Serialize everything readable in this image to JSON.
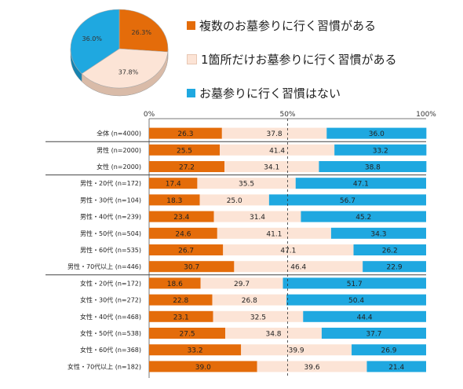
{
  "legend": [
    {
      "label": "複数のお墓参りに行く習慣がある",
      "color": "#E46C0A"
    },
    {
      "label": "1箇所だけお墓参りに行く習慣がある",
      "color": "#FCE4D6"
    },
    {
      "label": "お墓参りに行く習慣はない",
      "color": "#1FA8E0"
    }
  ],
  "chart_data": [
    {
      "type": "pie",
      "labels": [
        "複数のお墓参りに行く習慣がある",
        "1箇所だけお墓参りに行く習慣がある",
        "お墓参りに行く習慣はない"
      ],
      "values": [
        26.3,
        37.8,
        36.0
      ],
      "value_labels": [
        "26.3%",
        "37.8%",
        "36.0%"
      ],
      "colors": [
        "#E46C0A",
        "#FCE4D6",
        "#1FA8E0"
      ]
    },
    {
      "type": "bar",
      "orientation": "horizontal",
      "stacked": true,
      "xlim": [
        0,
        100
      ],
      "tick_labels": [
        "0%",
        "50%",
        "100%"
      ],
      "categories": [
        "全体 (n=4000)",
        "男性 (n=2000)",
        "女性 (n=2000)",
        "男性・20代 (n=172)",
        "男性・30代 (n=104)",
        "男性・40代 (n=239)",
        "男性・50代 (n=504)",
        "男性・60代 (n=535)",
        "男性・70代以上 (n=446)",
        "女性・20代 (n=172)",
        "女性・30代 (n=272)",
        "女性・40代 (n=468)",
        "女性・50代 (n=538)",
        "女性・60代 (n=368)",
        "女性・70代以上 (n=182)"
      ],
      "series": [
        {
          "name": "複数のお墓参りに行く習慣がある",
          "color": "#E46C0A",
          "values": [
            26.3,
            25.5,
            27.2,
            17.4,
            18.3,
            23.4,
            24.6,
            26.7,
            30.7,
            18.6,
            22.8,
            23.1,
            27.5,
            33.2,
            39.0
          ]
        },
        {
          "name": "1箇所だけお墓参りに行く習慣がある",
          "color": "#FCE4D6",
          "values": [
            37.8,
            41.4,
            34.1,
            35.5,
            25.0,
            31.4,
            41.1,
            47.1,
            46.4,
            29.7,
            26.8,
            32.5,
            34.8,
            39.9,
            39.6
          ]
        },
        {
          "name": "お墓参りに行く習慣はない",
          "color": "#1FA8E0",
          "values": [
            36.0,
            33.2,
            38.8,
            47.1,
            56.7,
            45.2,
            34.3,
            26.2,
            22.9,
            51.7,
            50.4,
            44.4,
            37.7,
            26.9,
            21.4
          ]
        }
      ],
      "value_labels": [
        [
          "26.3",
          "37.8",
          "36.0"
        ],
        [
          "25.5",
          "41.4",
          "33.2"
        ],
        [
          "27.2",
          "34.1",
          "38.8"
        ],
        [
          "17.4",
          "35.5",
          "47.1"
        ],
        [
          "18.3",
          "25.0",
          "56.7"
        ],
        [
          "23.4",
          "31.4",
          "45.2"
        ],
        [
          "24.6",
          "41.1",
          "34.3"
        ],
        [
          "26.7",
          "47.1",
          "26.2"
        ],
        [
          "30.7",
          "46.4",
          "22.9"
        ],
        [
          "18.6",
          "29.7",
          "51.7"
        ],
        [
          "22.8",
          "26.8",
          "50.4"
        ],
        [
          "23.1",
          "32.5",
          "44.4"
        ],
        [
          "27.5",
          "34.8",
          "37.7"
        ],
        [
          "33.2",
          "39.9",
          "26.9"
        ],
        [
          "39.0",
          "39.6",
          "21.4"
        ]
      ],
      "group_separators_after": [
        0,
        2,
        8
      ],
      "reference_line": 50
    }
  ]
}
